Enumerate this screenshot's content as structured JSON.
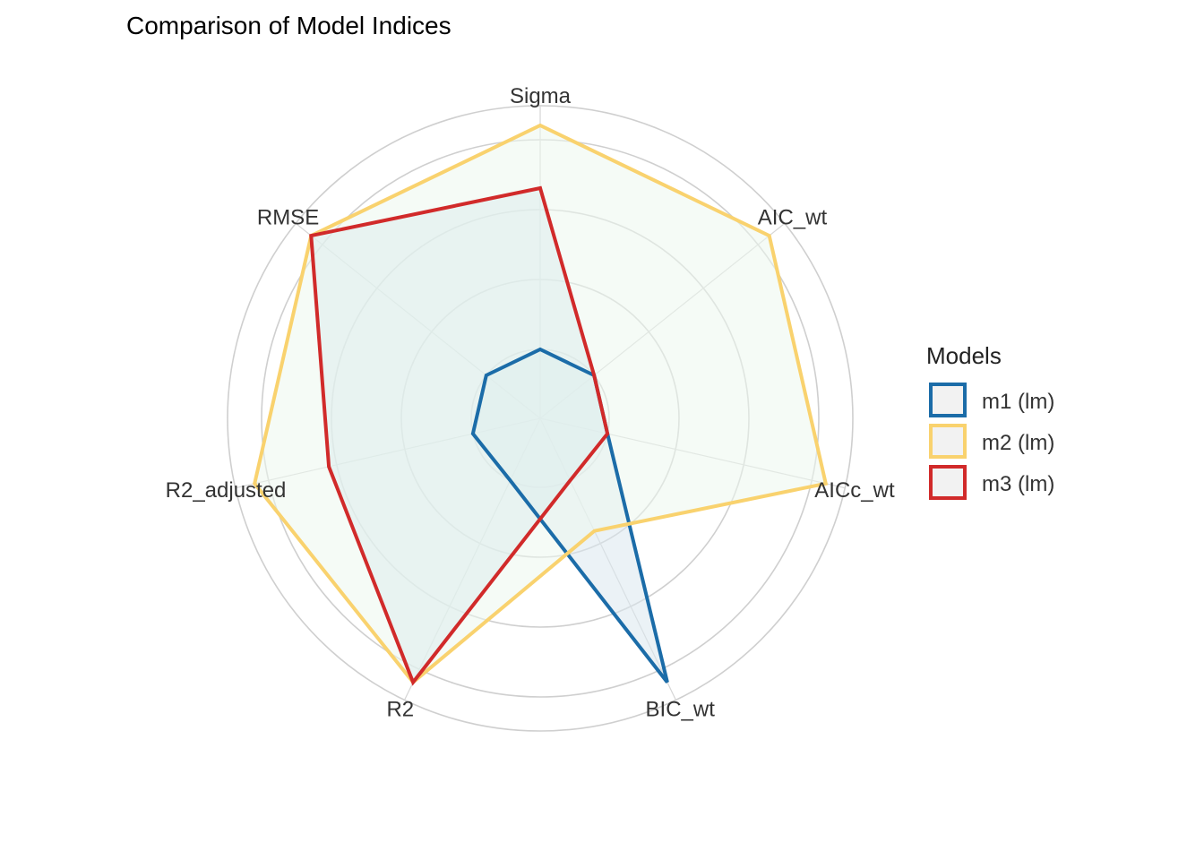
{
  "chart_data": {
    "type": "radar",
    "title": "Comparison of Model Indices",
    "axes": [
      "AIC_wt",
      "AICc_wt",
      "BIC_wt",
      "R2",
      "R2_adjusted",
      "RMSE",
      "Sigma"
    ],
    "series": [
      {
        "name": "m1 (lm)",
        "color": "#1b6ca8",
        "fill": "#dbe7ee",
        "values": [
          0.0,
          0.0,
          1.0,
          0.0,
          0.0,
          0.0,
          0.0
        ]
      },
      {
        "name": "m2 (lm)",
        "color": "#f9d26e",
        "fill": "#ecf7ef",
        "values": [
          1.0,
          1.0,
          0.25,
          1.0,
          1.0,
          1.0,
          1.0
        ]
      },
      {
        "name": "m3 (lm)",
        "color": "#d12a2a",
        "fill": "#dcecec",
        "values": [
          0.0,
          0.0,
          0.0,
          1.0,
          0.66,
          1.0,
          0.72
        ]
      }
    ],
    "rlim": [
      0,
      1
    ],
    "grid": true,
    "legend_title": "Models",
    "legend_position": "right"
  }
}
